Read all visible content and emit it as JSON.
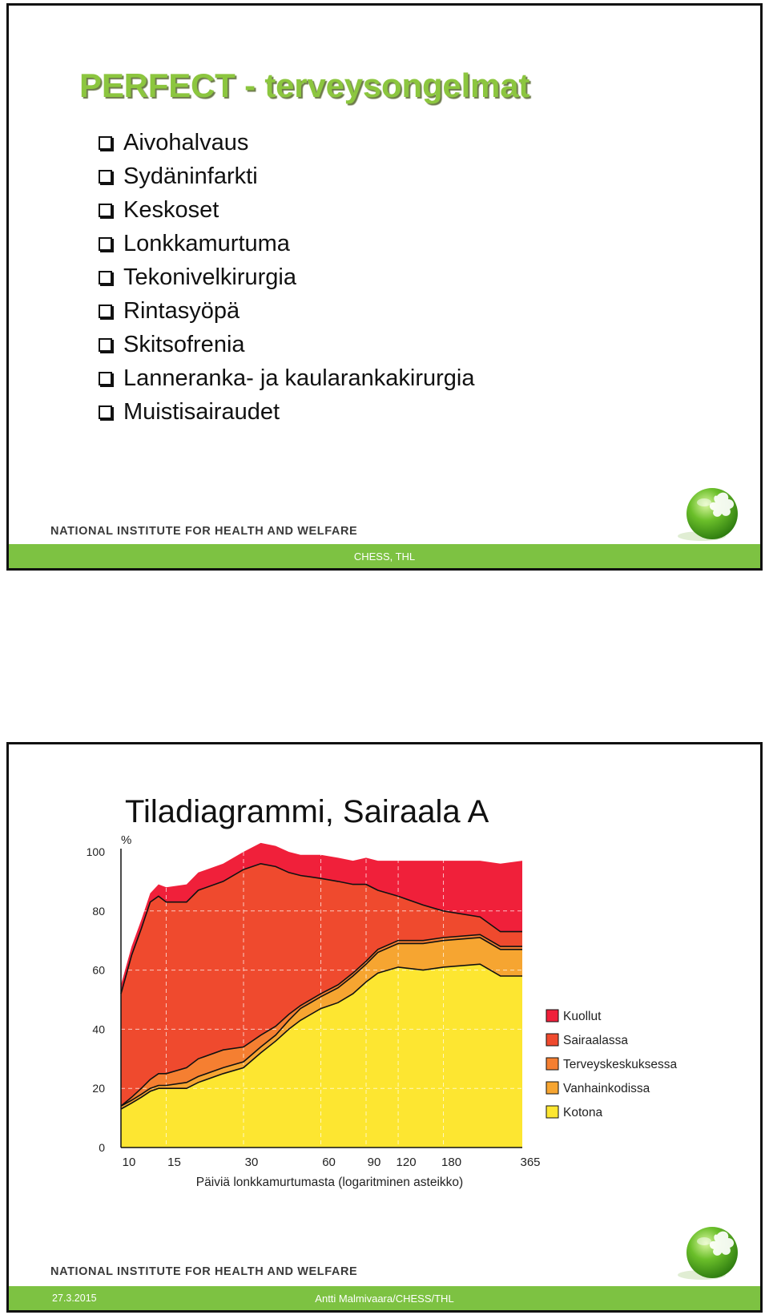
{
  "slide1": {
    "title": "PERFECT - terveysongelmat",
    "bullets": [
      "Aivohalvaus",
      "Sydäninfarkti",
      "Keskoset",
      "Lonkkamurtuma",
      "Tekonivelkirurgia",
      "Rintasyöpä",
      "Skitsofrenia",
      "Lanneranka- ja kaularankakirurgia",
      "Muistisairaudet"
    ],
    "institute": "NATIONAL INSTITUTE FOR HEALTH AND WELFARE",
    "footer": "CHESS, THL"
  },
  "slide2": {
    "title": "Tiladiagrammi, Sairaala A",
    "institute": "NATIONAL INSTITUTE FOR HEALTH AND WELFARE",
    "footer_date": "27.3.2015",
    "footer_author": "Antti Malmivaara/CHESS/THL"
  },
  "colors": {
    "green_accent": "#7dc242",
    "title_green": "#8cc63f",
    "kuollut": "#f0203a",
    "sairaalassa": "#ef4a2e",
    "terveyskeskuksessa": "#f57f31",
    "vanhainkodissa": "#f6a531",
    "kotona": "#fde631"
  },
  "chart_data": {
    "type": "area",
    "subtype": "stacked",
    "title": "",
    "ylabel": "%",
    "xlabel": "Päiviä lonkkamurtumasta (logaritminen asteikko)",
    "x_scale": "log",
    "xlim": [
      10,
      365
    ],
    "ylim": [
      0,
      100
    ],
    "x_ticks": [
      10,
      15,
      30,
      60,
      90,
      120,
      180,
      365
    ],
    "y_ticks": [
      0,
      20,
      40,
      60,
      80,
      100
    ],
    "grid": true,
    "legend_position": "right",
    "x": [
      10,
      11,
      12,
      13,
      14,
      15,
      18,
      20,
      25,
      30,
      35,
      40,
      45,
      50,
      60,
      70,
      80,
      90,
      100,
      120,
      150,
      180,
      250,
      300,
      365
    ],
    "series": [
      {
        "name": "Kotona",
        "key": "kotona",
        "values": [
          13,
          15,
          17,
          19,
          20,
          20,
          20,
          22,
          25,
          27,
          32,
          36,
          40,
          43,
          47,
          49,
          52,
          56,
          59,
          61,
          60,
          61,
          62,
          58,
          58
        ]
      },
      {
        "name": "Vanhainkodissa",
        "key": "vanhainkodissa",
        "values": [
          1,
          1,
          1,
          1,
          1,
          1,
          2,
          2,
          2,
          2,
          2,
          2,
          3,
          4,
          4,
          5,
          6,
          6,
          7,
          8,
          9,
          9,
          9,
          9,
          9
        ]
      },
      {
        "name": "Terveyskeskuksessa",
        "key": "terveyskeskuksessa",
        "values": [
          0,
          1,
          2,
          3,
          4,
          4,
          5,
          6,
          6,
          5,
          4,
          3,
          2,
          1,
          1,
          1,
          1,
          1,
          1,
          1,
          1,
          1,
          1,
          1,
          1
        ]
      },
      {
        "name": "Sairaalassa",
        "key": "sairaalassa",
        "values": [
          38,
          48,
          54,
          60,
          60,
          58,
          56,
          57,
          57,
          60,
          58,
          54,
          48,
          44,
          39,
          35,
          30,
          26,
          20,
          15,
          12,
          9,
          6,
          5,
          5
        ]
      },
      {
        "name": "Kuollut",
        "key": "kuollut",
        "values": [
          3,
          3,
          3,
          3,
          4,
          5,
          6,
          6,
          6,
          6,
          7,
          7,
          7,
          7,
          8,
          8,
          8,
          9,
          10,
          12,
          15,
          17,
          19,
          23,
          24
        ]
      }
    ],
    "legend": [
      "Kuollut",
      "Sairaalassa",
      "Terveyskeskuksessa",
      "Vanhainkodissa",
      "Kotona"
    ]
  }
}
